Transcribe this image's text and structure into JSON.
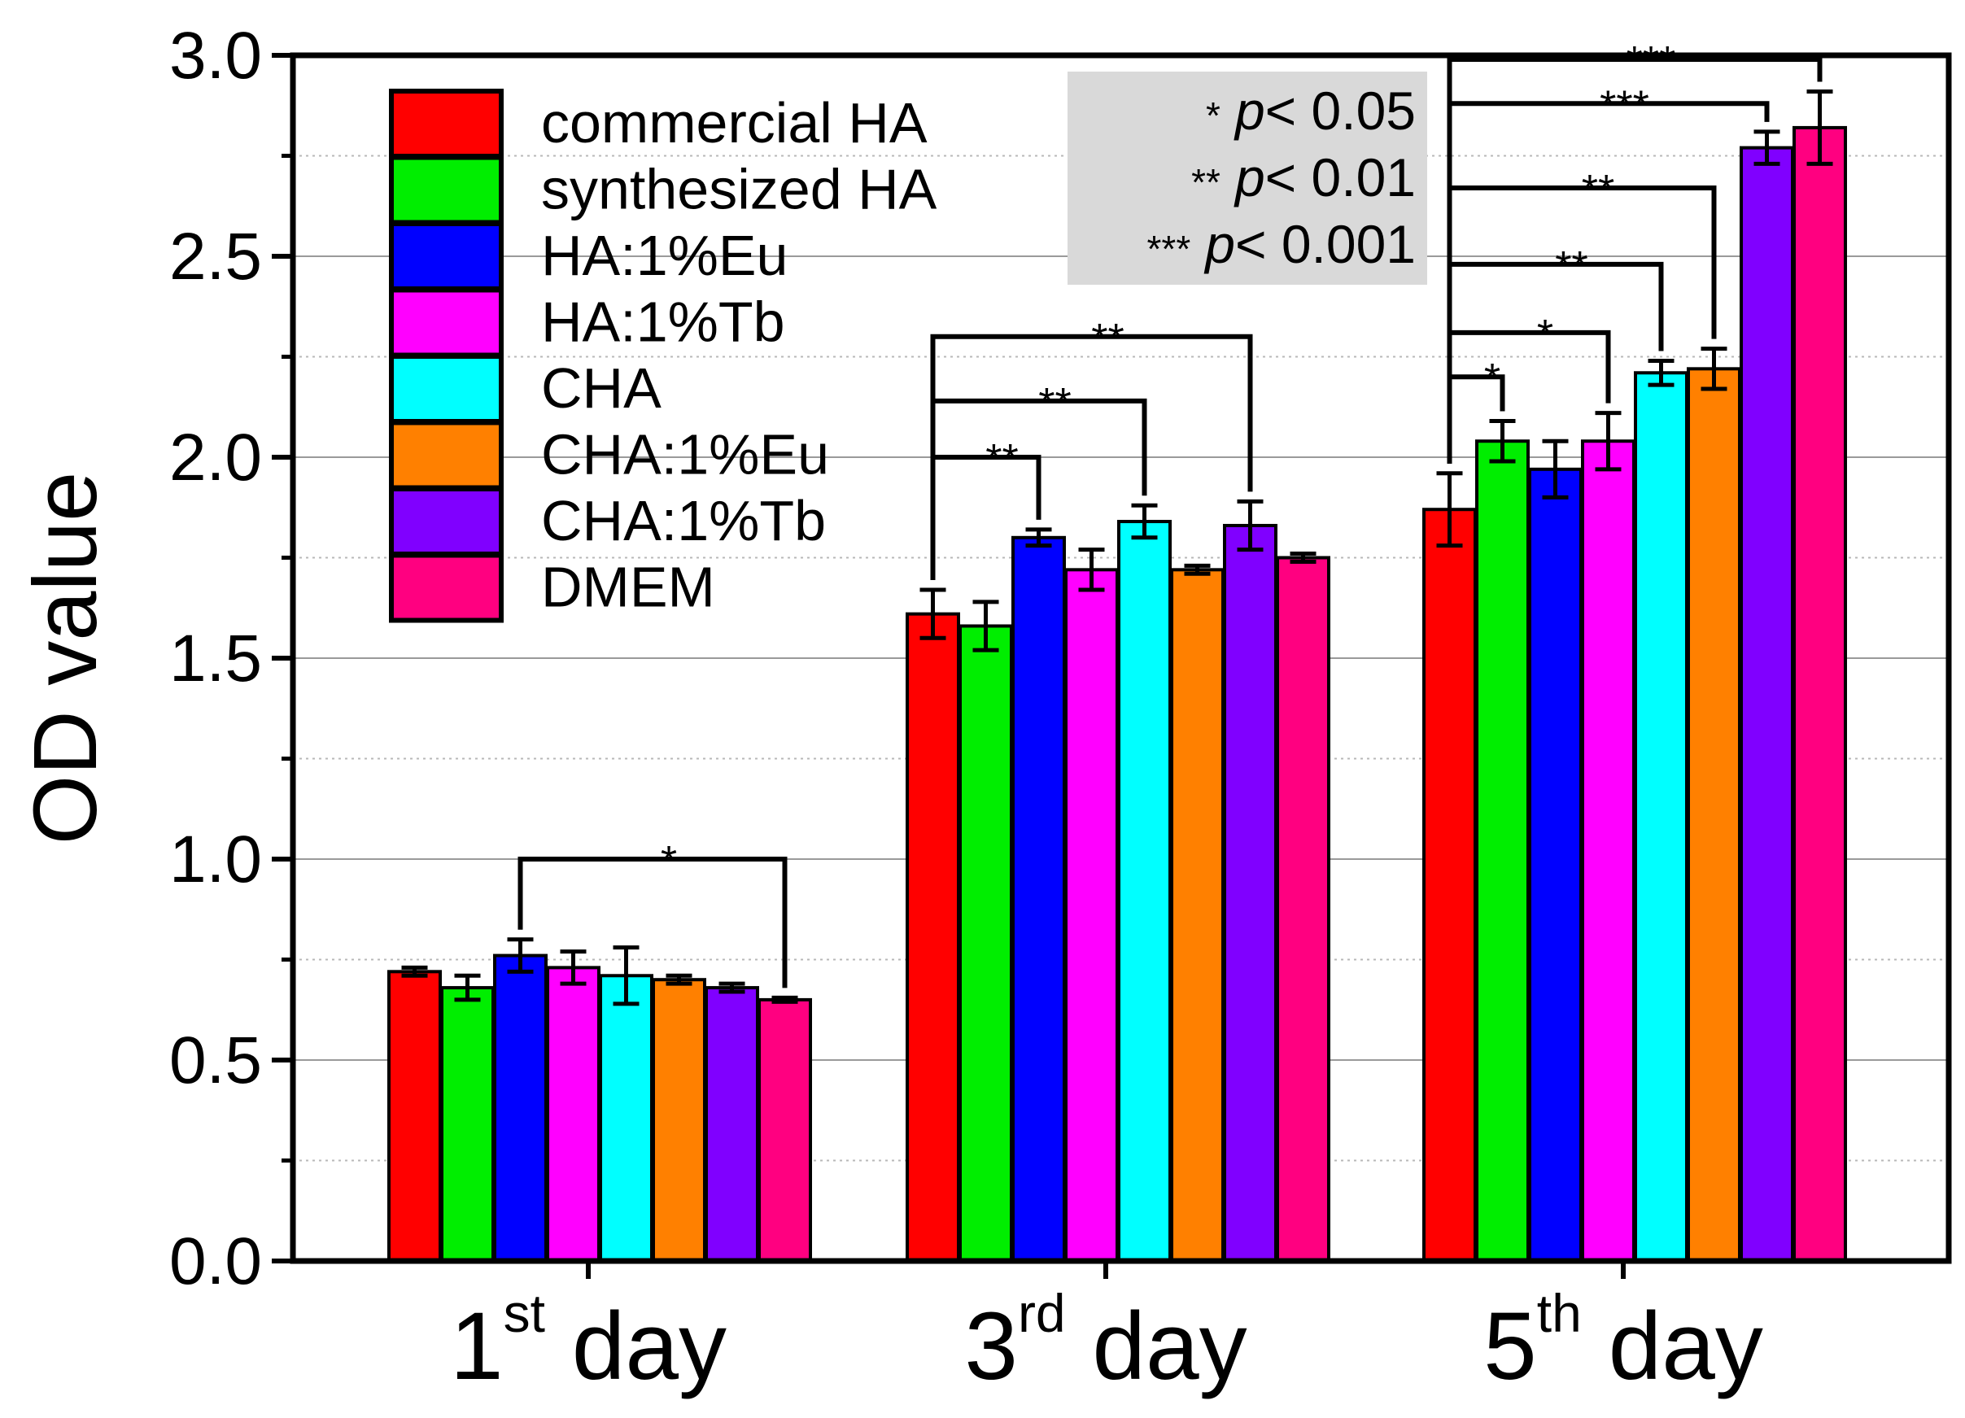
{
  "chart_data": {
    "type": "bar",
    "ylabel": "OD value",
    "xlabel": "",
    "ylim": [
      0,
      3.0
    ],
    "yticks": [
      "0.0",
      "0.5",
      "1.0",
      "1.5",
      "2.0",
      "2.5",
      "3.0"
    ],
    "grid": true,
    "categories": [
      {
        "base": "1",
        "sup": "st",
        "rest": " day"
      },
      {
        "base": "3",
        "sup": "rd",
        "rest": " day"
      },
      {
        "base": "5",
        "sup": "th",
        "rest": " day"
      }
    ],
    "series": [
      {
        "name": "commercial HA",
        "color": "#ff0000",
        "values": [
          0.72,
          1.61,
          1.87
        ],
        "errors": [
          0.01,
          0.06,
          0.09
        ]
      },
      {
        "name": "synthesized HA",
        "color": "#00ee00",
        "values": [
          0.68,
          1.58,
          2.04
        ],
        "errors": [
          0.03,
          0.06,
          0.05
        ]
      },
      {
        "name": "HA:1%Eu",
        "color": "#0000ff",
        "values": [
          0.76,
          1.8,
          1.97
        ],
        "errors": [
          0.04,
          0.02,
          0.07
        ]
      },
      {
        "name": "HA:1%Tb",
        "color": "#ff00ff",
        "values": [
          0.73,
          1.72,
          2.04
        ],
        "errors": [
          0.04,
          0.05,
          0.07
        ]
      },
      {
        "name": "CHA",
        "color": "#00ffff",
        "values": [
          0.71,
          1.84,
          2.21
        ],
        "errors": [
          0.07,
          0.04,
          0.03
        ]
      },
      {
        "name": "CHA:1%Eu",
        "color": "#ff8000",
        "values": [
          0.7,
          1.72,
          2.22
        ],
        "errors": [
          0.01,
          0.01,
          0.05
        ]
      },
      {
        "name": "CHA:1%Tb",
        "color": "#8000ff",
        "values": [
          0.68,
          1.83,
          2.77
        ],
        "errors": [
          0.01,
          0.06,
          0.04
        ]
      },
      {
        "name": "DMEM",
        "color": "#ff0080",
        "values": [
          0.65,
          1.75,
          2.82
        ],
        "errors": [
          0.005,
          0.01,
          0.09
        ]
      }
    ],
    "significance": [
      {
        "group": 0,
        "from": 2,
        "to": 7,
        "level": 1.0,
        "label": "*"
      },
      {
        "group": 1,
        "from": 0,
        "to": 2,
        "level": 2.0,
        "label": "**"
      },
      {
        "group": 1,
        "from": 0,
        "to": 4,
        "level": 2.14,
        "label": "**"
      },
      {
        "group": 1,
        "from": 0,
        "to": 6,
        "level": 2.3,
        "label": "**"
      },
      {
        "group": 2,
        "from": 0,
        "to": 1,
        "level": 2.2,
        "label": "*"
      },
      {
        "group": 2,
        "from": 0,
        "to": 3,
        "level": 2.31,
        "label": "*"
      },
      {
        "group": 2,
        "from": 0,
        "to": 4,
        "level": 2.48,
        "label": "**"
      },
      {
        "group": 2,
        "from": 0,
        "to": 5,
        "level": 2.67,
        "label": "**"
      },
      {
        "group": 2,
        "from": 0,
        "to": 6,
        "level": 2.88,
        "label": "***"
      },
      {
        "group": 2,
        "from": 0,
        "to": 7,
        "level": 2.99,
        "label": "***"
      }
    ],
    "pvalue_legend": [
      {
        "stars": "*",
        "p": "p",
        "threshold": "< 0.05"
      },
      {
        "stars": "**",
        "p": "p",
        "threshold": "< 0.01"
      },
      {
        "stars": "***",
        "p": "p",
        "threshold": "< 0.001"
      }
    ]
  }
}
